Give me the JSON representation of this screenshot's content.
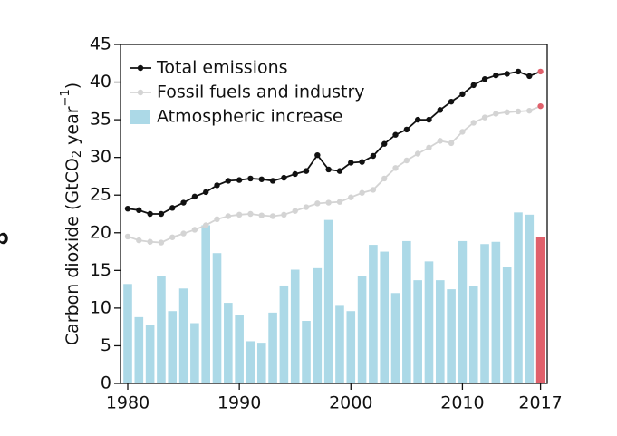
{
  "chart_data": {
    "type": "bar-line",
    "panel_label": "b",
    "y_label_parts": [
      "Carbon dioxide (GtCO",
      "2",
      " year",
      "−1",
      ")"
    ],
    "x": [
      1980,
      1981,
      1982,
      1983,
      1984,
      1985,
      1986,
      1987,
      1988,
      1989,
      1990,
      1991,
      1992,
      1993,
      1994,
      1995,
      1996,
      1997,
      1998,
      1999,
      2000,
      2001,
      2002,
      2003,
      2004,
      2005,
      2006,
      2007,
      2008,
      2009,
      2010,
      2011,
      2012,
      2013,
      2014,
      2015,
      2016,
      2017
    ],
    "xlim": [
      1979.35,
      2017.6
    ],
    "xticks": [
      1980,
      1990,
      2000,
      2010,
      2017
    ],
    "ylim": [
      0,
      45
    ],
    "yticks": [
      0,
      5,
      10,
      15,
      20,
      25,
      30,
      35,
      40,
      45
    ],
    "highlight_last": true,
    "highlight_color": "#e0606b",
    "series": [
      {
        "name": "Total emissions",
        "kind": "line",
        "color": "#111111",
        "values": [
          23.2,
          23.0,
          22.5,
          22.5,
          23.3,
          24.0,
          24.8,
          25.4,
          26.3,
          26.9,
          27.0,
          27.2,
          27.1,
          26.9,
          27.3,
          27.8,
          28.2,
          30.3,
          28.4,
          28.2,
          29.3,
          29.4,
          30.2,
          31.8,
          33.0,
          33.7,
          35.0,
          35.0,
          36.3,
          37.4,
          38.4,
          39.6,
          40.4,
          40.9,
          41.1,
          41.4,
          40.8,
          41.4
        ]
      },
      {
        "name": "Fossil fuels and industry",
        "kind": "line",
        "color": "#d4d4d4",
        "values": [
          19.5,
          19.0,
          18.8,
          18.7,
          19.4,
          19.9,
          20.4,
          21.0,
          21.8,
          22.2,
          22.4,
          22.5,
          22.3,
          22.2,
          22.4,
          22.9,
          23.4,
          23.9,
          24.0,
          24.1,
          24.7,
          25.3,
          25.7,
          27.2,
          28.6,
          29.6,
          30.5,
          31.3,
          32.2,
          31.9,
          33.4,
          34.6,
          35.3,
          35.8,
          36.0,
          36.1,
          36.2,
          36.8
        ]
      },
      {
        "name": "Atmospheric increase",
        "kind": "bar",
        "color": "#acd9e7",
        "values": [
          13.2,
          8.8,
          7.7,
          14.2,
          9.6,
          12.6,
          8.0,
          21.0,
          17.3,
          10.7,
          9.1,
          5.6,
          5.4,
          9.4,
          13.0,
          15.1,
          8.3,
          15.3,
          21.7,
          10.3,
          9.6,
          14.2,
          18.4,
          17.5,
          12.0,
          18.9,
          13.7,
          16.2,
          13.7,
          12.5,
          18.9,
          12.9,
          18.5,
          18.8,
          15.4,
          22.7,
          22.4,
          19.4
        ]
      }
    ]
  }
}
